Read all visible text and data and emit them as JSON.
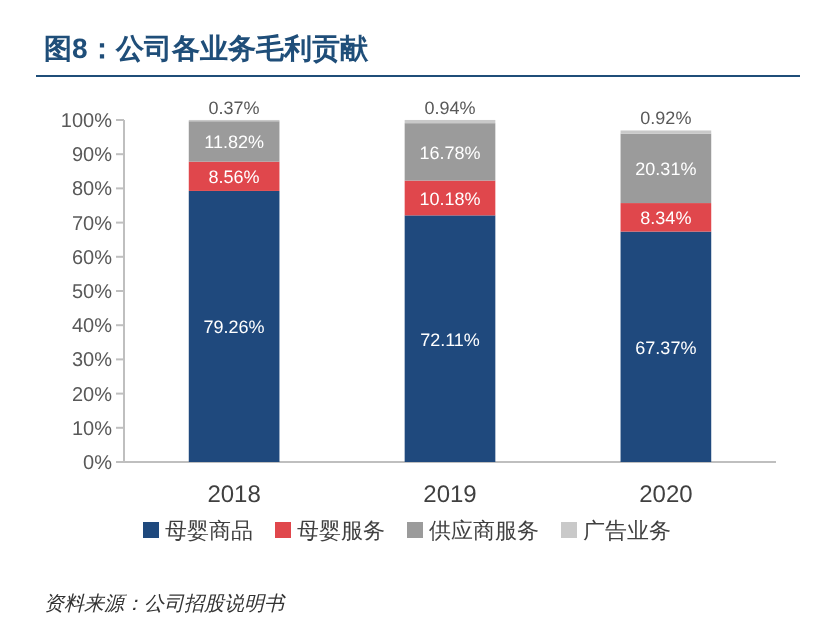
{
  "chart_data": {
    "type": "bar",
    "stacked": true,
    "title": "图8：公司各业务毛利贡献",
    "categories": [
      "2018",
      "2019",
      "2020"
    ],
    "series": [
      {
        "name": "母婴商品",
        "color": "#1f497d",
        "values": [
          79.26,
          72.11,
          67.37
        ],
        "value_labels": [
          "79.26%",
          "72.11%",
          "67.37%"
        ]
      },
      {
        "name": "母婴服务",
        "color": "#e0474c",
        "values": [
          8.56,
          10.18,
          8.34
        ],
        "value_labels": [
          "8.56%",
          "10.18%",
          "8.34%"
        ]
      },
      {
        "name": "供应商服务",
        "color": "#9b9b9b",
        "values": [
          11.82,
          16.78,
          20.31
        ],
        "value_labels": [
          "11.82%",
          "16.78%",
          "20.31%"
        ]
      },
      {
        "name": "广告业务",
        "color": "#c9c9c9",
        "values": [
          0.37,
          0.94,
          0.92
        ],
        "value_labels": [
          "0.37%",
          "0.94%",
          "0.92%"
        ]
      }
    ],
    "ylim": [
      0,
      100
    ],
    "yticks": [
      {
        "value": 0,
        "label": "0%"
      },
      {
        "value": 10,
        "label": "10%"
      },
      {
        "value": 20,
        "label": "20%"
      },
      {
        "value": 30,
        "label": "30%"
      },
      {
        "value": 40,
        "label": "40%"
      },
      {
        "value": 50,
        "label": "50%"
      },
      {
        "value": 60,
        "label": "60%"
      },
      {
        "value": 70,
        "label": "70%"
      },
      {
        "value": 80,
        "label": "80%"
      },
      {
        "value": 90,
        "label": "90%"
      },
      {
        "value": 100,
        "label": "100%"
      }
    ],
    "legend": "bottom",
    "grid": false,
    "annotations": [
      "资料来源：公司招股说明书"
    ]
  }
}
